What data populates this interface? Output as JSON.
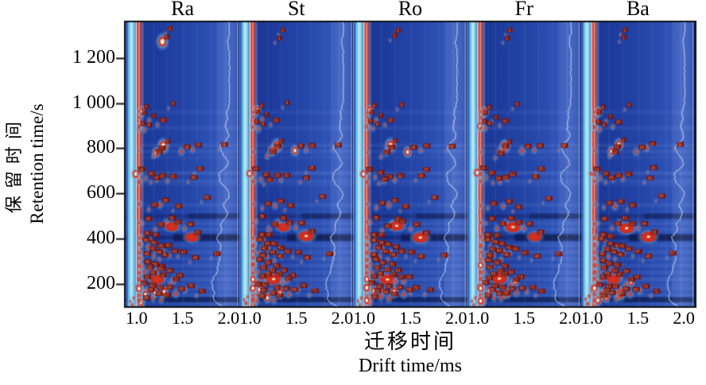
{
  "x_axis": {
    "title_zh": "迁移时间",
    "title_en": "Drift time/ms",
    "tick_labels": [
      "1.0",
      "1.5",
      "2.0"
    ],
    "tick_values": [
      1.0,
      1.5,
      2.0
    ]
  },
  "y_axis": {
    "title_zh": "保留时间",
    "title_en": "Retention time/s",
    "tick_labels": [
      "200",
      "400",
      "600",
      "800",
      "1 000",
      "1 200"
    ],
    "tick_values": [
      200,
      400,
      600,
      800,
      1000,
      1200
    ]
  },
  "chart_data": {
    "type": "heatmap",
    "subtype": "gc-ims-topographic",
    "panels": [
      {
        "label": "Ra",
        "seed": 11
      },
      {
        "label": "St",
        "seed": 23
      },
      {
        "label": "Ro",
        "seed": 37
      },
      {
        "label": "Fr",
        "seed": 51
      },
      {
        "label": "Ba",
        "seed": 67
      }
    ],
    "x_range": [
      0.88,
      2.12
    ],
    "y_range": [
      101,
      1358
    ],
    "rip_drift": 1.027,
    "trace_base_drift": 2.01,
    "colors": {
      "background": "#20409f",
      "background_light": "#3a5ec2",
      "stripe_cyan": "#7fd0ea",
      "stripe_white": "#eef8fd",
      "rip_red": "#e0301c",
      "spot_red": "#d8321e",
      "spot_halo": "#a8dcf0",
      "dark_band": "#081540",
      "trace": "#dde2ec",
      "label_box": "#7c150e",
      "label_text": "#dd8a76",
      "axis": "#111111"
    },
    "rows": [
      {
        "t": 1270,
        "a": 0,
        "w": 2
      },
      {
        "t": 960,
        "a": 0.05,
        "w": 3
      },
      {
        "t": 920,
        "a": 0,
        "w": 2
      },
      {
        "t": 890,
        "a": 0.07,
        "w": 4
      },
      {
        "t": 813,
        "a": 0.08,
        "w": 9
      },
      {
        "t": 786,
        "a": 0.07,
        "w": 6
      },
      {
        "t": 760,
        "a": 0.04,
        "w": 3
      },
      {
        "t": 690,
        "a": 0.1,
        "w": 11
      },
      {
        "t": 656,
        "a": 0.08,
        "w": 7
      },
      {
        "t": 641,
        "a": 0.05,
        "w": 4
      },
      {
        "t": 549,
        "a": 0.07,
        "w": 7
      },
      {
        "t": 500,
        "a": -0.22,
        "w": 2
      },
      {
        "t": 468,
        "a": 0.08,
        "w": 8
      },
      {
        "t": 441,
        "a": 0.07,
        "w": 5
      },
      {
        "t": 405,
        "a": -0.3,
        "w": 14
      },
      {
        "t": 372,
        "a": 0.07,
        "w": 7
      },
      {
        "t": 340,
        "a": 0.08,
        "w": 8
      },
      {
        "t": 310,
        "a": 0.07,
        "w": 7
      },
      {
        "t": 281,
        "a": 0.09,
        "w": 10
      },
      {
        "t": 250,
        "a": 0.08,
        "w": 10
      },
      {
        "t": 220,
        "a": 0.11,
        "w": 14
      },
      {
        "t": 196,
        "a": 0.05,
        "w": 7
      },
      {
        "t": 180,
        "a": 0.08,
        "w": 12
      },
      {
        "t": 150,
        "a": 0.07,
        "w": 10
      },
      {
        "t": 130,
        "a": -0.26,
        "w": 9
      },
      {
        "t": 114,
        "a": 0.07,
        "w": 7
      }
    ],
    "dark_bands": [
      {
        "t": 405,
        "from": 0.42,
        "h": 9,
        "a": 0.5
      },
      {
        "t": 500,
        "from": 0.55,
        "h": 7,
        "a": 0.33
      },
      {
        "t": 130,
        "from": 0.3,
        "h": 7,
        "a": 0.38
      }
    ],
    "v_streaks": [
      {
        "f": 0.24,
        "a": 0.05
      },
      {
        "f": 0.36,
        "a": 0.04
      },
      {
        "f": 0.5,
        "a": 0.05
      },
      {
        "f": 0.62,
        "a": 0.04
      },
      {
        "f": 0.74,
        "a": 0.05
      },
      {
        "f": 0.8,
        "a": 0.07,
        "wd": 0.17
      },
      {
        "f": 0.87,
        "a": 0.07
      }
    ],
    "stripes": [
      {
        "f": 0.006,
        "w": 2,
        "c": "#2f66c4",
        "a": 0.9
      },
      {
        "f": 0.02,
        "w": 3,
        "c": "#6ec6e6",
        "a": 0.95
      },
      {
        "f": 0.038,
        "w": 4,
        "c": "#c2ecf8",
        "a": 0.95
      },
      {
        "f": 0.058,
        "w": 3,
        "c": "#8ed8ee",
        "a": 0.9
      },
      {
        "f": 0.074,
        "w": 2,
        "c": "#4f9fd8",
        "a": 0.85
      },
      {
        "f": 0.089,
        "w": 2,
        "c": "#eef8fd",
        "a": 0.95
      },
      {
        "f": 0.098,
        "w": 5,
        "c": "#e0301c",
        "a": 1
      },
      {
        "f": 0.112,
        "w": 1.5,
        "c": "#f2ded2",
        "a": 0.6
      }
    ],
    "spots": [
      {
        "d": 1.28,
        "t": 1272,
        "i": 1.0,
        "n": 1,
        "fl": "ra"
      },
      {
        "d": 1.31,
        "t": 1305,
        "i": 0.1,
        "n": 3
      },
      {
        "d": 1.07,
        "t": 963,
        "i": 0.55,
        "n": 4
      },
      {
        "d": 1.03,
        "t": 938,
        "i": 0.3,
        "n": 5
      },
      {
        "d": 1.14,
        "t": 921,
        "i": 0.3,
        "n": 7
      },
      {
        "d": 1.02,
        "t": 893,
        "i": 0.6,
        "n": 6
      },
      {
        "d": 1.09,
        "t": 884,
        "i": 0.35,
        "n": 8
      },
      {
        "d": 1.36,
        "t": 976,
        "i": 0.12,
        "n": 9
      },
      {
        "d": 1.23,
        "t": 900,
        "i": 0.25,
        "n": 10
      },
      {
        "d": 1.28,
        "t": 813,
        "i": 0.95,
        "n": 2
      },
      {
        "d": 1.22,
        "t": 786,
        "i": 0.55,
        "n": 11
      },
      {
        "d": 1.47,
        "t": 788,
        "i": 0.55,
        "n": 18
      },
      {
        "d": 1.6,
        "t": 795,
        "i": 0.35,
        "n": 16
      },
      {
        "d": 1.18,
        "t": 760,
        "i": 0.3,
        "n": 12
      },
      {
        "d": 1.88,
        "t": 792,
        "i": 0.1,
        "n": 58
      },
      {
        "d": 0.99,
        "t": 692,
        "i": 0.65,
        "n": 14
      },
      {
        "d": 1.1,
        "t": 667,
        "i": 0.35,
        "n": 20
      },
      {
        "d": 1.22,
        "t": 656,
        "i": 0.3,
        "n": 23
      },
      {
        "d": 1.33,
        "t": 660,
        "i": 0.3,
        "n": 22
      },
      {
        "d": 1.15,
        "t": 643,
        "i": 0.22,
        "n": 24
      },
      {
        "d": 1.56,
        "t": 652,
        "i": 0.15,
        "n": 26
      },
      {
        "d": 1.62,
        "t": 690,
        "i": 0.12,
        "n": 25
      },
      {
        "d": 1.26,
        "t": 549,
        "i": 0.5,
        "n": 28
      },
      {
        "d": 1.12,
        "t": 533,
        "i": 0.3,
        "n": 29
      },
      {
        "d": 1.39,
        "t": 522,
        "i": 0.15,
        "n": 30
      },
      {
        "d": 1.71,
        "t": 563,
        "i": 0.1,
        "n": 56
      },
      {
        "d": 1.31,
        "t": 470,
        "i": 0.45,
        "n": 31
      },
      {
        "d": 1.37,
        "t": 452,
        "i": 0.85,
        "n": 13,
        "fl": "w"
      },
      {
        "d": 1.21,
        "t": 441,
        "i": 0.35,
        "n": 33
      },
      {
        "d": 1.51,
        "t": 446,
        "i": 0.35,
        "n": 34
      },
      {
        "d": 1.08,
        "t": 472,
        "i": 0.2,
        "n": 35
      },
      {
        "d": 1.6,
        "t": 406,
        "i": 1.0,
        "n": 15,
        "fl": "w"
      },
      {
        "d": 1.05,
        "t": 401,
        "i": 0.45,
        "n": 36
      },
      {
        "d": 1.13,
        "t": 395,
        "i": 0.3,
        "n": 37
      },
      {
        "d": 1.04,
        "t": 374,
        "i": 0.4,
        "n": 38
      },
      {
        "d": 1.12,
        "t": 361,
        "i": 0.35,
        "n": 39
      },
      {
        "d": 1.2,
        "t": 352,
        "i": 0.35,
        "n": 40
      },
      {
        "d": 1.28,
        "t": 344,
        "i": 0.35,
        "n": 41
      },
      {
        "d": 1.1,
        "t": 337,
        "i": 0.3,
        "n": 42
      },
      {
        "d": 1.35,
        "t": 329,
        "i": 0.3,
        "n": 43
      },
      {
        "d": 1.18,
        "t": 321,
        "i": 0.3,
        "n": 44
      },
      {
        "d": 1.06,
        "t": 311,
        "i": 0.35,
        "n": 45
      },
      {
        "d": 1.26,
        "t": 307,
        "i": 0.3,
        "n": 46
      },
      {
        "d": 1.46,
        "t": 317,
        "i": 0.15,
        "n": 47
      },
      {
        "d": 1.57,
        "t": 301,
        "i": 0.12,
        "n": 48
      },
      {
        "d": 1.8,
        "t": 312,
        "i": 0.08,
        "n": 57
      },
      {
        "d": 1.05,
        "t": 283,
        "i": 0.45,
        "n": 49
      },
      {
        "d": 1.14,
        "t": 271,
        "i": 0.4,
        "n": 50
      },
      {
        "d": 1.23,
        "t": 262,
        "i": 0.4,
        "n": 51
      },
      {
        "d": 1.08,
        "t": 251,
        "i": 0.4,
        "n": 52
      },
      {
        "d": 1.19,
        "t": 241,
        "i": 0.45,
        "n": 53
      },
      {
        "d": 1.31,
        "t": 237,
        "i": 0.35,
        "n": 54
      },
      {
        "d": 1.12,
        "t": 227,
        "i": 0.5,
        "n": 55
      },
      {
        "d": 1.24,
        "t": 219,
        "i": 0.95,
        "n": 17,
        "fl": "w"
      },
      {
        "d": 1.41,
        "t": 214,
        "i": 0.55,
        "n": 19
      },
      {
        "d": 1.06,
        "t": 209,
        "i": 0.4,
        "n": 21
      },
      {
        "d": 1.35,
        "t": 203,
        "i": 0.35,
        "n": 27
      },
      {
        "d": 1.02,
        "t": 181,
        "i": 0.9,
        "n": 61
      },
      {
        "d": 1.11,
        "t": 171,
        "i": 0.55,
        "n": 62
      },
      {
        "d": 1.21,
        "t": 167,
        "i": 0.5,
        "n": 63
      },
      {
        "d": 1.31,
        "t": 161,
        "i": 0.85,
        "n": 64
      },
      {
        "d": 1.09,
        "t": 149,
        "i": 0.55,
        "n": 65
      },
      {
        "d": 1.17,
        "t": 141,
        "i": 0.5,
        "n": 66
      },
      {
        "d": 1.26,
        "t": 133,
        "i": 0.5,
        "n": 67
      },
      {
        "d": 1.05,
        "t": 123,
        "i": 0.6,
        "n": 68
      },
      {
        "d": 1.42,
        "t": 154,
        "i": 0.5,
        "n": 69
      },
      {
        "d": 1.52,
        "t": 168,
        "i": 0.35,
        "n": 70
      },
      {
        "d": 1.64,
        "t": 150,
        "i": 0.2,
        "n": 71
      },
      {
        "d": 1.027,
        "t": 962,
        "i": 0.3,
        "n": 0
      },
      {
        "d": 1.027,
        "t": 893,
        "i": 0.4,
        "n": 0
      },
      {
        "d": 1.027,
        "t": 786,
        "i": 0.3,
        "n": 0
      },
      {
        "d": 1.027,
        "t": 690,
        "i": 0.55,
        "n": 0
      },
      {
        "d": 1.027,
        "t": 655,
        "i": 0.4,
        "n": 0
      },
      {
        "d": 1.027,
        "t": 549,
        "i": 0.35,
        "n": 0
      },
      {
        "d": 1.027,
        "t": 470,
        "i": 0.4,
        "n": 0
      },
      {
        "d": 1.027,
        "t": 405,
        "i": 0.45,
        "n": 0
      },
      {
        "d": 1.027,
        "t": 372,
        "i": 0.5,
        "n": 0
      },
      {
        "d": 1.027,
        "t": 340,
        "i": 0.4,
        "n": 0
      },
      {
        "d": 1.027,
        "t": 310,
        "i": 0.45,
        "n": 0
      },
      {
        "d": 1.027,
        "t": 281,
        "i": 0.5,
        "n": 0
      },
      {
        "d": 1.027,
        "t": 250,
        "i": 0.5,
        "n": 0
      },
      {
        "d": 1.027,
        "t": 219,
        "i": 0.55,
        "n": 0
      },
      {
        "d": 1.027,
        "t": 181,
        "i": 0.6,
        "n": 0
      },
      {
        "d": 1.027,
        "t": 150,
        "i": 0.5,
        "n": 0
      },
      {
        "d": 1.027,
        "t": 128,
        "i": 0.55,
        "n": 0
      },
      {
        "d": 0.95,
        "t": 112,
        "i": 0.45,
        "n": 0
      },
      {
        "d": 0.93,
        "t": 128,
        "i": 0.35,
        "n": 0
      },
      {
        "d": 0.97,
        "t": 142,
        "i": 0.4,
        "n": 0
      }
    ]
  }
}
